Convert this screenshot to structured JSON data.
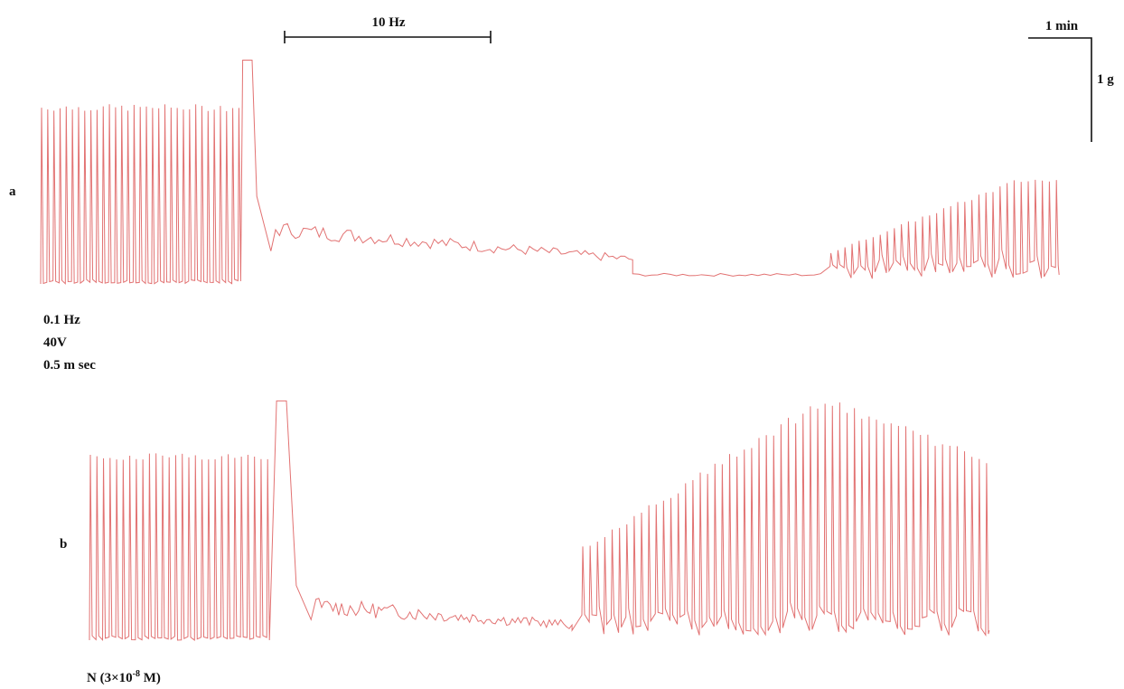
{
  "scale_bars": {
    "stim_label": "10 Hz",
    "time_label": "1 min",
    "force_label": "1 g"
  },
  "stim_params": [
    "0.1 Hz",
    "40V",
    "0.5 m sec"
  ],
  "panel_labels": {
    "a": "a",
    "b": "b"
  },
  "drug_label": {
    "prefix": "N (3×10",
    "exponent": "-8",
    "suffix": " M)"
  },
  "chart_data": [
    {
      "type": "line",
      "panel": "a",
      "description_units": {
        "x": "min",
        "y": "g"
      },
      "segments": [
        {
          "phase": "0.1 Hz baseline twitches",
          "t_start": 0.0,
          "t_end": 2.1,
          "peak_force": 1.95,
          "baseline_force": 0.0
        },
        {
          "phase": "10 Hz tetanus peak",
          "t": 2.2,
          "force": 2.45
        },
        {
          "phase": "10 Hz fade",
          "t_start": 2.3,
          "t_end": 6.3,
          "force_start": 0.6,
          "force_end": 0.15
        },
        {
          "phase": "post-tetanic quiescence",
          "t_start": 6.3,
          "t_end": 8.3,
          "force": 0.1
        },
        {
          "phase": "0.1 Hz recovery twitches",
          "t_start": 8.4,
          "t_end": 10.8,
          "peak_force_start": 0.35,
          "peak_force_end": 1.15
        }
      ]
    },
    {
      "type": "line",
      "panel": "b",
      "description_units": {
        "x": "min",
        "y": "g"
      },
      "segments": [
        {
          "phase": "0.1 Hz baseline twitches",
          "t_start": 0.0,
          "t_end": 1.8,
          "peak_force": 1.9,
          "baseline_force": 0.0
        },
        {
          "phase": "10 Hz tetanus peak",
          "t": 1.95,
          "force": 2.45
        },
        {
          "phase": "10 Hz fade",
          "t_start": 2.1,
          "t_end": 4.9,
          "force_start": 0.35,
          "force_end": 0.1
        },
        {
          "phase": "0.1 Hz recovery twitches",
          "t_start": 5.0,
          "t_end": 9.1,
          "peak_force_start": 0.95,
          "peak_force_end": 2.5
        }
      ]
    }
  ],
  "colors": {
    "trace": "#e06a6a",
    "ink": "#111111"
  }
}
